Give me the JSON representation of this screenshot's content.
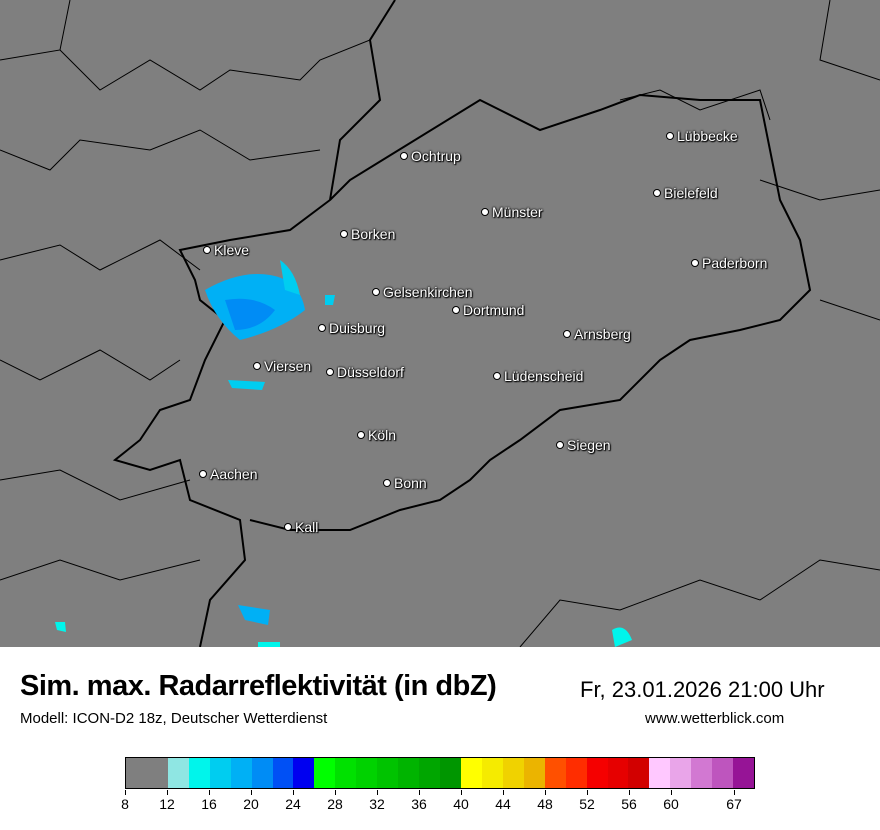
{
  "map": {
    "cities": [
      "Lübbecke",
      "Ochtrup",
      "Bielefeld",
      "Münster",
      "Borken",
      "Kleve",
      "Paderborn",
      "Gelsenkirchen",
      "Dortmund",
      "Duisburg",
      "Arnsberg",
      "Viersen",
      "Düsseldorf",
      "Lüdenscheid",
      "Köln",
      "Siegen",
      "Aachen",
      "Bonn",
      "Kall"
    ],
    "background_color": "#7f7f7f"
  },
  "header": {
    "title": "Sim. max. Radarreflektivität (in dbZ)",
    "datetime": "Fr, 23.01.2026 21:00 Uhr",
    "model": "Modell: ICON-D2 18z, Deutscher Wetterdienst",
    "website": "www.wetterblick.com"
  },
  "legend": {
    "colors": [
      "#7f7f7f",
      "#8fe6e3",
      "#00f5eb",
      "#00cdf0",
      "#00b0f5",
      "#008cf5",
      "#0050f5",
      "#0000f0",
      "#00ff00",
      "#00e100",
      "#00d200",
      "#00c300",
      "#00b400",
      "#00a600",
      "#009600",
      "#ffff00",
      "#f5eb00",
      "#f0d200",
      "#ebb400",
      "#ff5000",
      "#ff2d00",
      "#f50000",
      "#e60000",
      "#d20000",
      "#ffc8ff",
      "#e9a5e9",
      "#d278d2",
      "#be55be",
      "#961496"
    ],
    "ticks": [
      "8",
      "12",
      "16",
      "20",
      "24",
      "28",
      "32",
      "36",
      "40",
      "44",
      "48",
      "52",
      "56",
      "60",
      "67"
    ]
  }
}
